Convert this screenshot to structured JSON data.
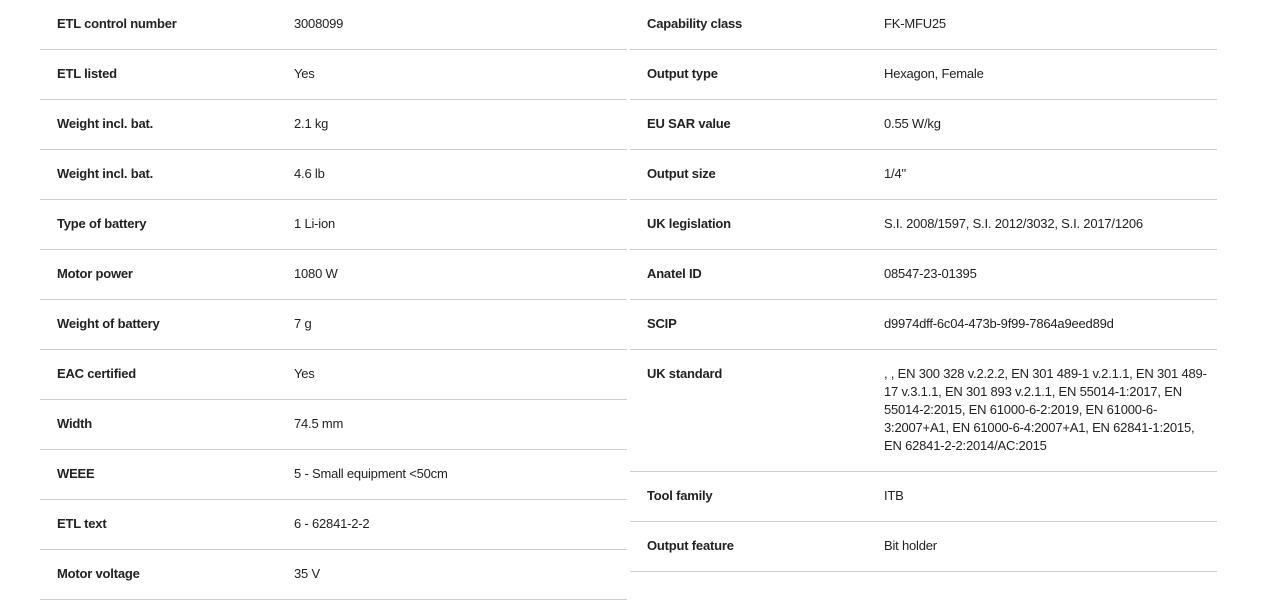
{
  "left": [
    {
      "label": "ETL control number",
      "value": "3008099"
    },
    {
      "label": "ETL listed",
      "value": "Yes"
    },
    {
      "label": "Weight incl. bat.",
      "value": "2.1 kg"
    },
    {
      "label": "Weight incl. bat.",
      "value": "4.6 lb"
    },
    {
      "label": "Type of battery",
      "value": "1 Li-ion"
    },
    {
      "label": "Motor power",
      "value": "1080 W"
    },
    {
      "label": "Weight of battery",
      "value": "7 g"
    },
    {
      "label": "EAC certified",
      "value": "Yes"
    },
    {
      "label": "Width",
      "value": "74.5 mm"
    },
    {
      "label": "WEEE",
      "value": "5 - Small equipment <50cm"
    },
    {
      "label": "ETL text",
      "value": "6 - 62841-2-2"
    },
    {
      "label": "Motor voltage",
      "value": "35 V"
    }
  ],
  "right": [
    {
      "label": "Capability class",
      "value": "FK-MFU25"
    },
    {
      "label": "Output type",
      "value": "Hexagon, Female"
    },
    {
      "label": "EU SAR value",
      "value": "0.55 W/kg"
    },
    {
      "label": "Output size",
      "value": "1/4\""
    },
    {
      "label": "UK legislation",
      "value": "S.I. 2008/1597, S.I. 2012/3032, S.I. 2017/1206"
    },
    {
      "label": "Anatel ID",
      "value": "08547-23-01395"
    },
    {
      "label": "SCIP",
      "value": "d9974dff-6c04-473b-9f99-7864a9eed89d"
    },
    {
      "label": "UK standard",
      "value": ", , EN 300 328 v.2.2.2, EN 301 489-1 v.2.1.1, EN 301 489-17 v.3.1.1, EN 301 893 v.2.1.1, EN 55014-1:2017, EN 55014-2:2015, EN 61000-6-2:2019, EN 61000-6-3:2007+A1, EN 61000-6-4:2007+A1, EN 62841-1:2015, EN 62841-2-2:2014/AC:2015"
    },
    {
      "label": "Tool family",
      "value": "ITB"
    },
    {
      "label": "Output feature",
      "value": "Bit holder"
    }
  ]
}
